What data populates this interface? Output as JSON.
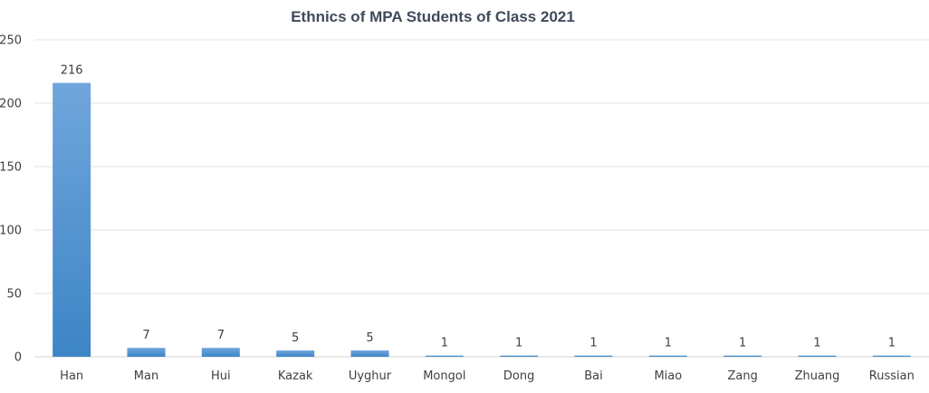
{
  "chart_data": {
    "type": "bar",
    "title": "Ethnics of MPA Students of Class 2021",
    "xlabel": "",
    "ylabel": "",
    "categories": [
      "Han",
      "Man",
      "Hui",
      "Kazak",
      "Uyghur",
      "Mongol",
      "Dong",
      "Bai",
      "Miao",
      "Zang",
      "Zhuang",
      "Russian"
    ],
    "values": [
      216,
      7,
      7,
      5,
      5,
      1,
      1,
      1,
      1,
      1,
      1,
      1
    ],
    "data_labels": [
      "216",
      "7",
      "7",
      "5",
      "5",
      "1",
      "1",
      "1",
      "1",
      "1",
      "1",
      "1"
    ],
    "y_ticks": [
      0,
      50,
      100,
      150,
      200,
      250
    ],
    "ylim": [
      0,
      250
    ],
    "grid": true,
    "legend": "none",
    "colors": {
      "bar_top": "#70a6dc",
      "bar_bottom": "#3d85c6",
      "title": "#3f4b5b",
      "text": "#404040",
      "grid": "#e3e3e3"
    }
  }
}
